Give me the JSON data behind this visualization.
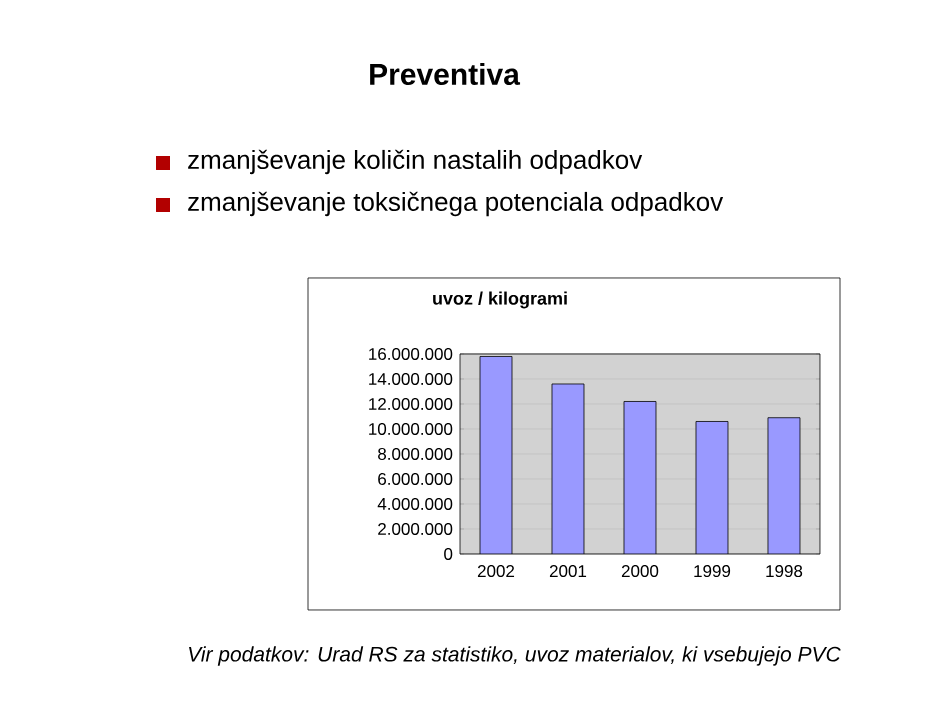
{
  "chart_data": {
    "type": "bar",
    "title": "Preventiva",
    "subtitle": "uvoz  / kilogrami",
    "annotations": [
      "zmanjševanje količin nastalih odpadkov",
      "zmanjševanje toksičnega potenciala odpadkov",
      "Vir podatkov: Urad RS za statistiko, uvoz materialov, ki vsebujejo PVC"
    ],
    "categories": [
      "2002",
      "2001",
      "2000",
      "1999",
      "1998"
    ],
    "values": [
      15800000,
      13600000,
      12200000,
      10600000,
      10900000
    ],
    "color": "#9999ff",
    "ylim": [
      0,
      16000000
    ],
    "yticks": [
      {
        "value": 0,
        "label": "0"
      },
      {
        "value": 2000000,
        "label": "2.000.000"
      },
      {
        "value": 4000000,
        "label": "4.000.000"
      },
      {
        "value": 6000000,
        "label": "6.000.000"
      },
      {
        "value": 8000000,
        "label": "8.000.000"
      },
      {
        "value": 10000000,
        "label": "10.000.000"
      },
      {
        "value": 12000000,
        "label": "12.000.000"
      },
      {
        "value": 14000000,
        "label": "14.000.000"
      },
      {
        "value": 16000000,
        "label": "16.000.000"
      }
    ],
    "grid": "y"
  }
}
